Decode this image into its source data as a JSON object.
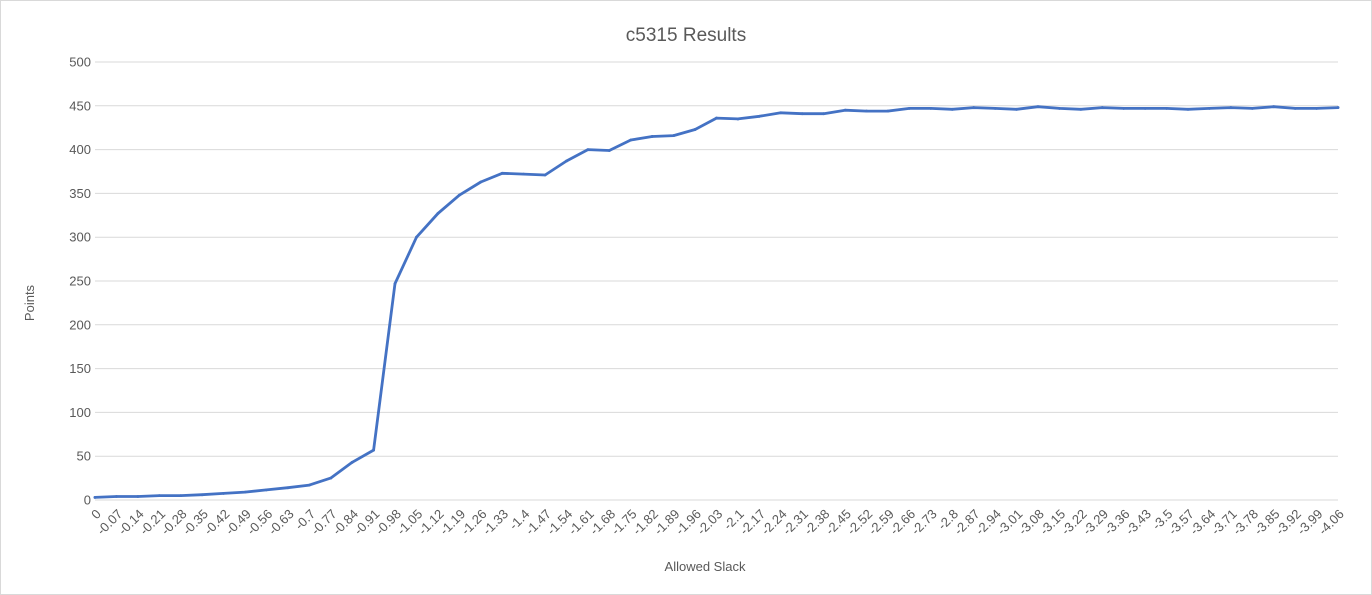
{
  "chart_data": {
    "type": "line",
    "title": "c5315 Results",
    "xlabel": "Allowed Slack",
    "ylabel": "Points",
    "ylim": [
      0,
      500
    ],
    "yticks": [
      0,
      50,
      100,
      150,
      200,
      250,
      300,
      350,
      400,
      450,
      500
    ],
    "grid": true,
    "legend": "none",
    "colors": {
      "line": "#4472c4",
      "grid": "#d9d9d9",
      "text": "#595959"
    },
    "categories": [
      "0",
      "-0.07",
      "-0.14",
      "-0.21",
      "-0.28",
      "-0.35",
      "-0.42",
      "-0.49",
      "-0.56",
      "-0.63",
      "-0.7",
      "-0.77",
      "-0.84",
      "-0.91",
      "-0.98",
      "-1.05",
      "-1.12",
      "-1.19",
      "-1.26",
      "-1.33",
      "-1.4",
      "-1.47",
      "-1.54",
      "-1.61",
      "-1.68",
      "-1.75",
      "-1.82",
      "-1.89",
      "-1.96",
      "-2.03",
      "-2.1",
      "-2.17",
      "-2.24",
      "-2.31",
      "-2.38",
      "-2.45",
      "-2.52",
      "-2.59",
      "-2.66",
      "-2.73",
      "-2.8",
      "-2.87",
      "-2.94",
      "-3.01",
      "-3.08",
      "-3.15",
      "-3.22",
      "-3.29",
      "-3.36",
      "-3.43",
      "-3.5",
      "-3.57",
      "-3.64",
      "-3.71",
      "-3.78",
      "-3.85",
      "-3.92",
      "-3.99",
      "-4.06"
    ],
    "values": [
      3,
      4,
      4,
      5,
      5,
      6,
      7.5,
      9,
      11.5,
      14,
      17,
      25,
      43,
      57,
      247,
      300,
      327,
      348,
      363,
      373,
      372,
      371,
      387,
      400,
      399,
      411,
      415,
      416,
      423,
      436,
      435,
      438,
      442,
      441,
      441,
      445,
      444,
      444,
      447,
      447,
      446,
      448,
      447,
      446,
      449,
      447,
      446,
      448,
      447,
      447,
      447,
      446,
      447,
      448,
      447,
      449,
      447,
      447,
      448
    ]
  }
}
